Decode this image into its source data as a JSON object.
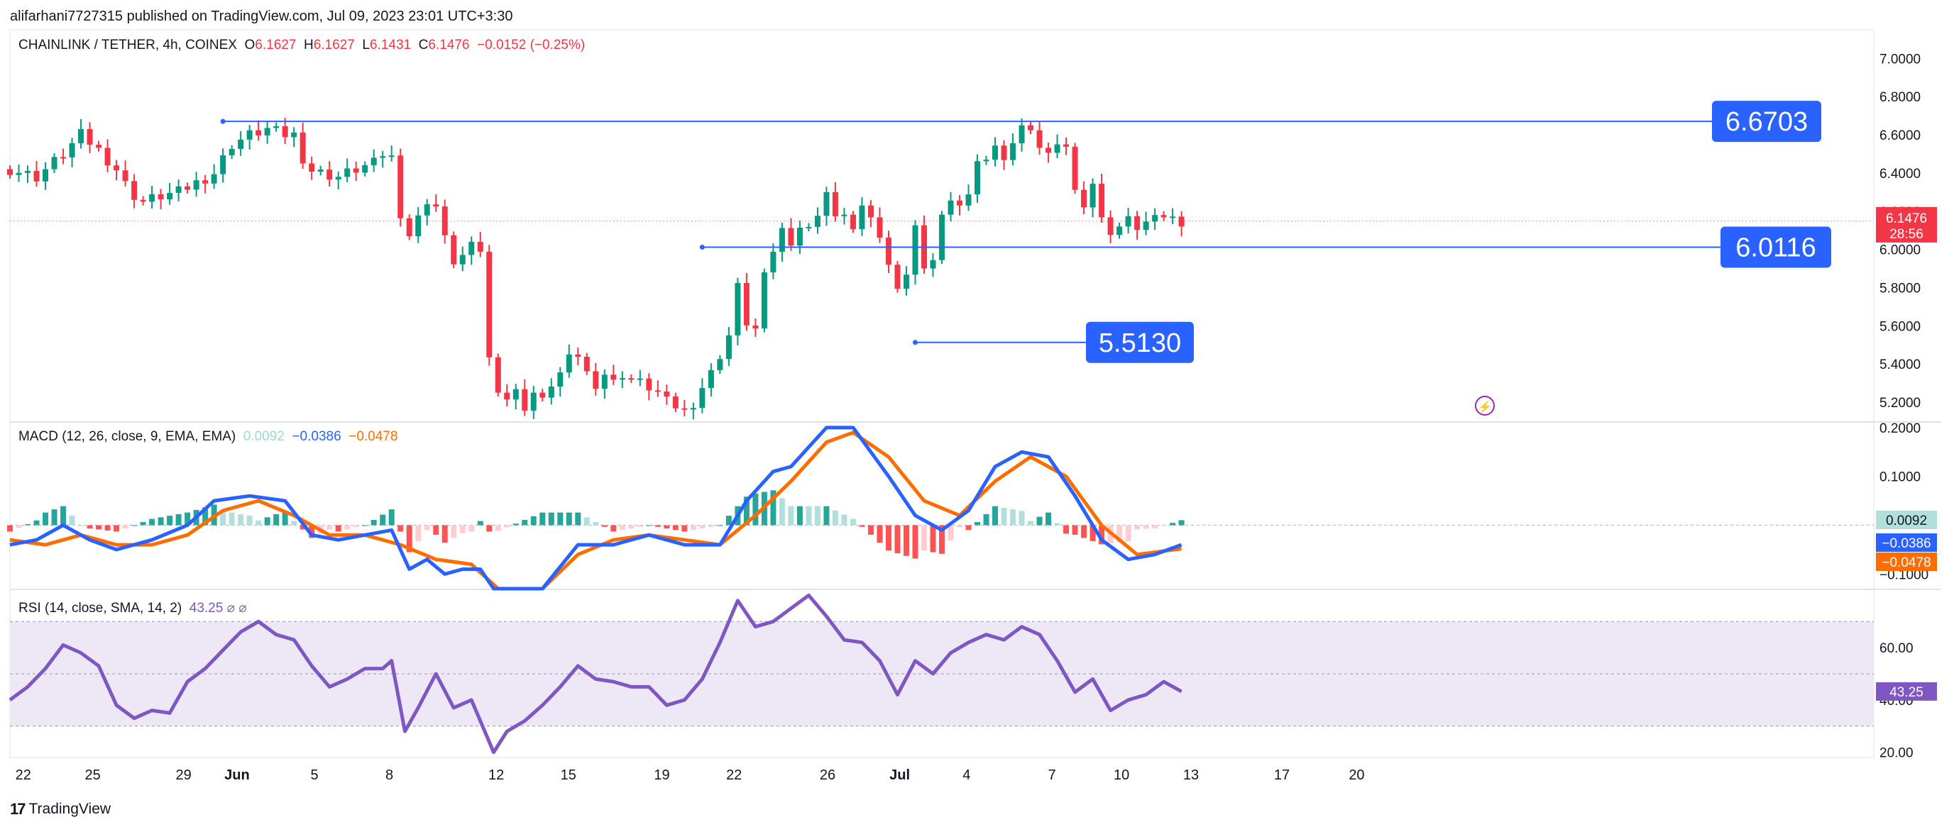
{
  "header": {
    "publisher": "alifarhani7727315 published on TradingView.com, Jul 09, 2023 23:01 UTC+3:30",
    "symbol": "CHAINLINK / TETHER, 4h, COINEX",
    "o_label": "O",
    "o_value": "6.1627",
    "h_label": "H",
    "h_value": "6.1627",
    "l_label": "L",
    "l_value": "6.1431",
    "c_label": "C",
    "c_value": "6.1476",
    "change": "−0.0152 (−0.25%)"
  },
  "footer": {
    "brand": "TradingView"
  },
  "colors": {
    "up": "#089981",
    "down": "#f23645",
    "level": "#2962ff",
    "macd": "#2962ff",
    "signal": "#ff6d00",
    "hist_up_strong": "#26a69a",
    "hist_up_weak": "#b2dfdb",
    "hist_down_strong": "#ff5252",
    "hist_down_weak": "#ffcdd2",
    "rsi": "#7e57c2",
    "rsi_band": "#ede7f6"
  },
  "chart_data": [
    {
      "type": "candlestick",
      "title": "CHAINLINK / TETHER, 4h, COINEX",
      "ylim": [
        5.1,
        7.15
      ],
      "y_ticks": [
        "7.0000",
        "6.8000",
        "6.6000",
        "6.4000",
        "6.2000",
        "6.0000",
        "5.8000",
        "5.6000",
        "5.4000",
        "5.2000"
      ],
      "x_ticks": [
        "22",
        "25",
        "29",
        "Jun",
        "5",
        "8",
        "12",
        "15",
        "19",
        "22",
        "26",
        "Jul",
        "4",
        "7",
        "10",
        "13",
        "17",
        "20"
      ],
      "last_price": "6.1476",
      "countdown": "28:56",
      "levels": [
        {
          "label": "6.6703",
          "value": 6.6703
        },
        {
          "label": "6.0116",
          "value": 6.0116
        },
        {
          "label": "5.5130",
          "value": 5.513
        }
      ],
      "close_path": [
        {
          "x": 0,
          "y": 6.42
        },
        {
          "x": 3,
          "y": 6.38
        },
        {
          "x": 6,
          "y": 6.5
        },
        {
          "x": 8,
          "y": 6.6
        },
        {
          "x": 10,
          "y": 6.52
        },
        {
          "x": 12,
          "y": 6.42
        },
        {
          "x": 13.5,
          "y": 6.3
        },
        {
          "x": 15,
          "y": 6.25
        },
        {
          "x": 17,
          "y": 6.28
        },
        {
          "x": 19,
          "y": 6.3
        },
        {
          "x": 21,
          "y": 6.35
        },
        {
          "x": 23,
          "y": 6.4
        },
        {
          "x": 25,
          "y": 6.55
        },
        {
          "x": 27,
          "y": 6.6
        },
        {
          "x": 29,
          "y": 6.63
        },
        {
          "x": 31,
          "y": 6.6
        },
        {
          "x": 32,
          "y": 6.6
        },
        {
          "x": 33.5,
          "y": 6.42
        },
        {
          "x": 35,
          "y": 6.4
        },
        {
          "x": 37,
          "y": 6.38
        },
        {
          "x": 39,
          "y": 6.42
        },
        {
          "x": 41,
          "y": 6.45
        },
        {
          "x": 42,
          "y": 6.5
        },
        {
          "x": 43,
          "y": 6.48
        },
        {
          "x": 44.5,
          "y": 6.05
        },
        {
          "x": 45.5,
          "y": 6.1
        },
        {
          "x": 46.5,
          "y": 6.22
        },
        {
          "x": 47.5,
          "y": 6.3
        },
        {
          "x": 48.5,
          "y": 6.15
        },
        {
          "x": 49.5,
          "y": 5.95
        },
        {
          "x": 50.5,
          "y": 5.93
        },
        {
          "x": 51.5,
          "y": 6.0
        },
        {
          "x": 52.5,
          "y": 6.02
        },
        {
          "x": 53.5,
          "y": 5.98
        },
        {
          "x": 54.2,
          "y": 5.2
        },
        {
          "x": 55,
          "y": 5.28
        },
        {
          "x": 56,
          "y": 5.22
        },
        {
          "x": 57,
          "y": 5.25
        },
        {
          "x": 58,
          "y": 5.18
        },
        {
          "x": 59,
          "y": 5.25
        },
        {
          "x": 60,
          "y": 5.2
        },
        {
          "x": 61,
          "y": 5.3
        },
        {
          "x": 62,
          "y": 5.35
        },
        {
          "x": 63,
          "y": 5.42
        },
        {
          "x": 64,
          "y": 5.45
        },
        {
          "x": 65,
          "y": 5.35
        },
        {
          "x": 66,
          "y": 5.3
        },
        {
          "x": 67,
          "y": 5.35
        },
        {
          "x": 68,
          "y": 5.3
        },
        {
          "x": 69,
          "y": 5.35
        },
        {
          "x": 70,
          "y": 5.32
        },
        {
          "x": 71,
          "y": 5.3
        },
        {
          "x": 72,
          "y": 5.28
        },
        {
          "x": 73,
          "y": 5.25
        },
        {
          "x": 74,
          "y": 5.2
        },
        {
          "x": 75,
          "y": 5.18
        },
        {
          "x": 76,
          "y": 5.15
        },
        {
          "x": 77,
          "y": 5.2
        },
        {
          "x": 78,
          "y": 5.28
        },
        {
          "x": 79,
          "y": 5.35
        },
        {
          "x": 80,
          "y": 5.45
        },
        {
          "x": 81,
          "y": 5.55
        },
        {
          "x": 82,
          "y": 5.8
        },
        {
          "x": 83,
          "y": 5.62
        },
        {
          "x": 84,
          "y": 5.58
        },
        {
          "x": 85,
          "y": 5.85
        },
        {
          "x": 86,
          "y": 6.0
        },
        {
          "x": 87,
          "y": 6.1
        },
        {
          "x": 88,
          "y": 6.05
        },
        {
          "x": 89,
          "y": 6.12
        },
        {
          "x": 90,
          "y": 6.1
        },
        {
          "x": 91,
          "y": 6.2
        },
        {
          "x": 92,
          "y": 6.3
        },
        {
          "x": 93,
          "y": 6.15
        },
        {
          "x": 94,
          "y": 6.2
        },
        {
          "x": 95,
          "y": 6.1
        },
        {
          "x": 96,
          "y": 6.2
        },
        {
          "x": 97,
          "y": 6.18
        },
        {
          "x": 98,
          "y": 6.05
        },
        {
          "x": 99,
          "y": 5.95
        },
        {
          "x": 100,
          "y": 5.8
        },
        {
          "x": 101,
          "y": 5.85
        },
        {
          "x": 102,
          "y": 6.15
        },
        {
          "x": 103,
          "y": 5.9
        },
        {
          "x": 104,
          "y": 5.92
        },
        {
          "x": 105,
          "y": 6.2
        },
        {
          "x": 106,
          "y": 6.25
        },
        {
          "x": 107,
          "y": 6.2
        },
        {
          "x": 108,
          "y": 6.3
        },
        {
          "x": 109,
          "y": 6.45
        },
        {
          "x": 110,
          "y": 6.5
        },
        {
          "x": 111,
          "y": 6.55
        },
        {
          "x": 112,
          "y": 6.45
        },
        {
          "x": 113,
          "y": 6.58
        },
        {
          "x": 114,
          "y": 6.65
        },
        {
          "x": 115,
          "y": 6.6
        },
        {
          "x": 116,
          "y": 6.55
        },
        {
          "x": 117,
          "y": 6.5
        },
        {
          "x": 118,
          "y": 6.52
        },
        {
          "x": 119,
          "y": 6.55
        },
        {
          "x": 120,
          "y": 6.3
        },
        {
          "x": 121,
          "y": 6.25
        },
        {
          "x": 122,
          "y": 6.35
        },
        {
          "x": 123,
          "y": 6.15
        },
        {
          "x": 124,
          "y": 6.1
        },
        {
          "x": 125,
          "y": 6.12
        },
        {
          "x": 126,
          "y": 6.15
        },
        {
          "x": 127,
          "y": 6.12
        },
        {
          "x": 128,
          "y": 6.14
        },
        {
          "x": 129,
          "y": 6.15
        },
        {
          "x": 130,
          "y": 6.18
        },
        {
          "x": 131,
          "y": 6.16
        },
        {
          "x": 132,
          "y": 6.15
        }
      ]
    },
    {
      "type": "macd",
      "title": "MACD (12, 26, close, 9, EMA, EMA)",
      "values": [
        "0.0092",
        "−0.0386",
        "−0.0478"
      ],
      "y_ticks": [
        "0.2000",
        "0.1000",
        "−0.1000"
      ],
      "ylim": [
        -0.13,
        0.21
      ],
      "macd": [
        {
          "x": 0,
          "y": -0.04
        },
        {
          "x": 3,
          "y": -0.03
        },
        {
          "x": 6,
          "y": 0.0
        },
        {
          "x": 9,
          "y": -0.03
        },
        {
          "x": 12,
          "y": -0.05
        },
        {
          "x": 16,
          "y": -0.03
        },
        {
          "x": 20,
          "y": 0.0
        },
        {
          "x": 23,
          "y": 0.05
        },
        {
          "x": 27,
          "y": 0.06
        },
        {
          "x": 31,
          "y": 0.05
        },
        {
          "x": 34,
          "y": -0.02
        },
        {
          "x": 37,
          "y": -0.03
        },
        {
          "x": 40,
          "y": -0.02
        },
        {
          "x": 43,
          "y": -0.01
        },
        {
          "x": 45,
          "y": -0.09
        },
        {
          "x": 47,
          "y": -0.07
        },
        {
          "x": 49,
          "y": -0.1
        },
        {
          "x": 51,
          "y": -0.09
        },
        {
          "x": 53,
          "y": -0.09
        },
        {
          "x": 54.5,
          "y": -0.14
        },
        {
          "x": 60,
          "y": -0.13
        },
        {
          "x": 64,
          "y": -0.04
        },
        {
          "x": 68,
          "y": -0.04
        },
        {
          "x": 72,
          "y": -0.02
        },
        {
          "x": 76,
          "y": -0.04
        },
        {
          "x": 80,
          "y": -0.04
        },
        {
          "x": 83,
          "y": 0.05
        },
        {
          "x": 86,
          "y": 0.11
        },
        {
          "x": 88,
          "y": 0.12
        },
        {
          "x": 92,
          "y": 0.2
        },
        {
          "x": 95,
          "y": 0.2
        },
        {
          "x": 99,
          "y": 0.1
        },
        {
          "x": 102,
          "y": 0.02
        },
        {
          "x": 105,
          "y": -0.01
        },
        {
          "x": 108,
          "y": 0.03
        },
        {
          "x": 111,
          "y": 0.12
        },
        {
          "x": 114,
          "y": 0.15
        },
        {
          "x": 117,
          "y": 0.14
        },
        {
          "x": 120,
          "y": 0.06
        },
        {
          "x": 123,
          "y": -0.03
        },
        {
          "x": 126,
          "y": -0.07
        },
        {
          "x": 129,
          "y": -0.06
        },
        {
          "x": 132,
          "y": -0.04
        }
      ],
      "signal": [
        {
          "x": 0,
          "y": -0.03
        },
        {
          "x": 4,
          "y": -0.04
        },
        {
          "x": 8,
          "y": -0.02
        },
        {
          "x": 12,
          "y": -0.04
        },
        {
          "x": 16,
          "y": -0.04
        },
        {
          "x": 20,
          "y": -0.02
        },
        {
          "x": 24,
          "y": 0.03
        },
        {
          "x": 28,
          "y": 0.05
        },
        {
          "x": 32,
          "y": 0.02
        },
        {
          "x": 36,
          "y": -0.02
        },
        {
          "x": 40,
          "y": -0.02
        },
        {
          "x": 44,
          "y": -0.04
        },
        {
          "x": 48,
          "y": -0.07
        },
        {
          "x": 52,
          "y": -0.08
        },
        {
          "x": 55,
          "y": -0.13
        },
        {
          "x": 60,
          "y": -0.15
        },
        {
          "x": 64,
          "y": -0.06
        },
        {
          "x": 68,
          "y": -0.03
        },
        {
          "x": 72,
          "y": -0.02
        },
        {
          "x": 76,
          "y": -0.03
        },
        {
          "x": 80,
          "y": -0.04
        },
        {
          "x": 84,
          "y": 0.02
        },
        {
          "x": 88,
          "y": 0.09
        },
        {
          "x": 92,
          "y": 0.17
        },
        {
          "x": 95,
          "y": 0.19
        },
        {
          "x": 99,
          "y": 0.14
        },
        {
          "x": 103,
          "y": 0.05
        },
        {
          "x": 107,
          "y": 0.02
        },
        {
          "x": 111,
          "y": 0.09
        },
        {
          "x": 115,
          "y": 0.14
        },
        {
          "x": 119,
          "y": 0.1
        },
        {
          "x": 123,
          "y": 0.0
        },
        {
          "x": 127,
          "y": -0.06
        },
        {
          "x": 132,
          "y": -0.048
        }
      ]
    },
    {
      "type": "rsi",
      "title": "RSI (14, close, SMA, 14, 2)",
      "values": [
        "43.25"
      ],
      "y_ticks": [
        "60.00",
        "40.00",
        "20.00"
      ],
      "ylim": [
        18,
        82
      ],
      "band": [
        30,
        70
      ],
      "values_path": [
        {
          "x": 0,
          "y": 40
        },
        {
          "x": 2,
          "y": 45
        },
        {
          "x": 4,
          "y": 52
        },
        {
          "x": 6,
          "y": 61
        },
        {
          "x": 8,
          "y": 58
        },
        {
          "x": 10,
          "y": 53
        },
        {
          "x": 12,
          "y": 38
        },
        {
          "x": 14,
          "y": 33
        },
        {
          "x": 16,
          "y": 36
        },
        {
          "x": 18,
          "y": 35
        },
        {
          "x": 20,
          "y": 47
        },
        {
          "x": 22,
          "y": 52
        },
        {
          "x": 24,
          "y": 59
        },
        {
          "x": 26,
          "y": 66
        },
        {
          "x": 28,
          "y": 70
        },
        {
          "x": 30,
          "y": 65
        },
        {
          "x": 32,
          "y": 63
        },
        {
          "x": 34,
          "y": 53
        },
        {
          "x": 36,
          "y": 45
        },
        {
          "x": 38,
          "y": 48
        },
        {
          "x": 40,
          "y": 52
        },
        {
          "x": 42,
          "y": 52
        },
        {
          "x": 43,
          "y": 55
        },
        {
          "x": 44.5,
          "y": 28
        },
        {
          "x": 46,
          "y": 37
        },
        {
          "x": 48,
          "y": 50
        },
        {
          "x": 50,
          "y": 37
        },
        {
          "x": 52,
          "y": 40
        },
        {
          "x": 54.5,
          "y": 20
        },
        {
          "x": 56,
          "y": 28
        },
        {
          "x": 58,
          "y": 32
        },
        {
          "x": 60,
          "y": 38
        },
        {
          "x": 62,
          "y": 45
        },
        {
          "x": 64,
          "y": 53
        },
        {
          "x": 66,
          "y": 48
        },
        {
          "x": 68,
          "y": 47
        },
        {
          "x": 70,
          "y": 45
        },
        {
          "x": 72,
          "y": 45
        },
        {
          "x": 74,
          "y": 38
        },
        {
          "x": 76,
          "y": 40
        },
        {
          "x": 78,
          "y": 48
        },
        {
          "x": 80,
          "y": 62
        },
        {
          "x": 82,
          "y": 78
        },
        {
          "x": 84,
          "y": 68
        },
        {
          "x": 86,
          "y": 70
        },
        {
          "x": 88,
          "y": 75
        },
        {
          "x": 90,
          "y": 80
        },
        {
          "x": 92,
          "y": 72
        },
        {
          "x": 94,
          "y": 63
        },
        {
          "x": 96,
          "y": 62
        },
        {
          "x": 98,
          "y": 55
        },
        {
          "x": 100,
          "y": 42
        },
        {
          "x": 102,
          "y": 55
        },
        {
          "x": 104,
          "y": 50
        },
        {
          "x": 106,
          "y": 58
        },
        {
          "x": 108,
          "y": 62
        },
        {
          "x": 110,
          "y": 65
        },
        {
          "x": 112,
          "y": 63
        },
        {
          "x": 114,
          "y": 68
        },
        {
          "x": 116,
          "y": 65
        },
        {
          "x": 118,
          "y": 55
        },
        {
          "x": 120,
          "y": 43
        },
        {
          "x": 122,
          "y": 48
        },
        {
          "x": 124,
          "y": 36
        },
        {
          "x": 126,
          "y": 40
        },
        {
          "x": 128,
          "y": 42
        },
        {
          "x": 130,
          "y": 47
        },
        {
          "x": 132,
          "y": 43.25
        }
      ]
    }
  ]
}
